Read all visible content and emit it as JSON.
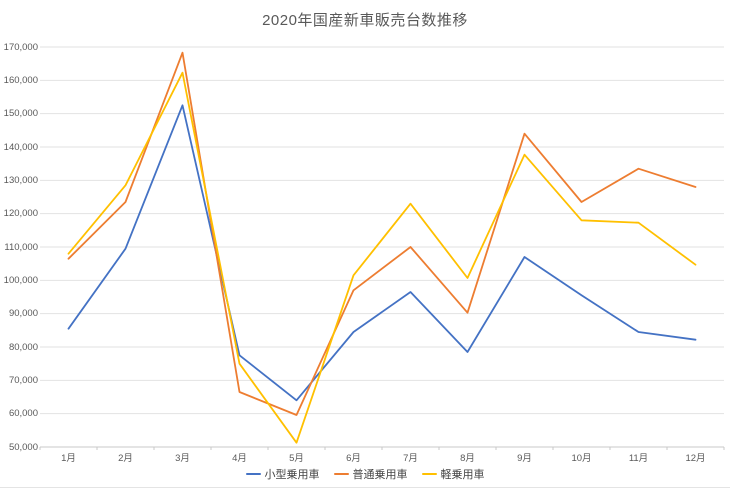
{
  "title": "2020年国産新車販売台数推移",
  "chart_data": {
    "type": "line",
    "title": "2020年国産新車販売台数推移",
    "categories": [
      "1月",
      "2月",
      "3月",
      "4月",
      "5月",
      "6月",
      "7月",
      "8月",
      "9月",
      "10月",
      "11月",
      "12月"
    ],
    "series": [
      {
        "name": "小型乗用車",
        "color": "#4472C4",
        "values": [
          85500,
          109500,
          152500,
          77500,
          64000,
          84500,
          96500,
          78500,
          107000,
          95500,
          84500,
          82200
        ]
      },
      {
        "name": "普通乗用車",
        "color": "#ED7D31",
        "values": [
          106500,
          123500,
          168300,
          66500,
          59600,
          97000,
          110000,
          90300,
          144000,
          123500,
          133500,
          128000
        ]
      },
      {
        "name": "軽乗用車",
        "color": "#FFC000",
        "values": [
          108000,
          128500,
          162300,
          75000,
          51300,
          101500,
          123000,
          100700,
          137700,
          118000,
          117300,
          104700
        ]
      }
    ],
    "ylim": [
      50000,
      170000
    ],
    "ytick_step": 10000,
    "ytick_labels": [
      "50,000",
      "60,000",
      "70,000",
      "80,000",
      "90,000",
      "100,000",
      "110,000",
      "120,000",
      "130,000",
      "140,000",
      "150,000",
      "160,000",
      "170,000"
    ],
    "grid": true,
    "legend_position": "bottom",
    "gridline_color": "#e2e2e2",
    "axis_color": "#c9c9c9",
    "label_color": "#595959"
  }
}
